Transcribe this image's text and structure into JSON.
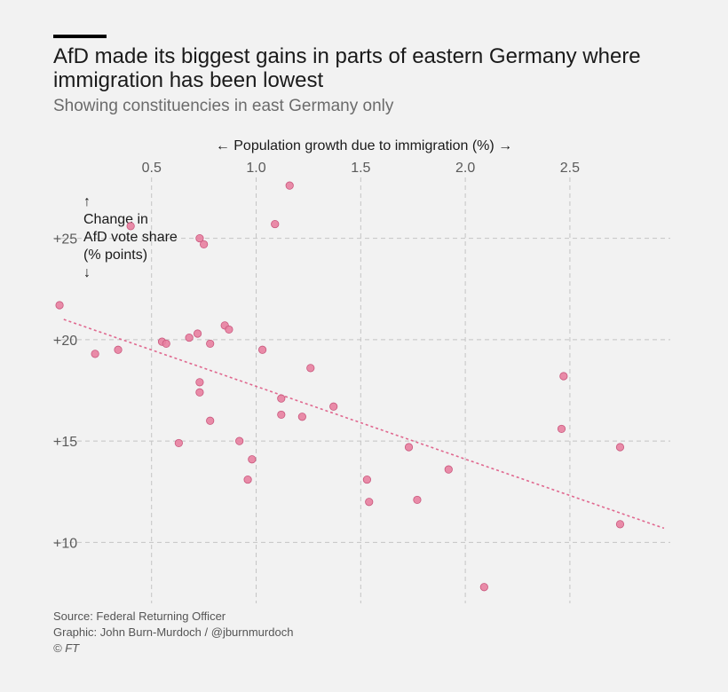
{
  "header": {
    "title": "AfD made its biggest gains in parts of eastern Germany where immigration has been lowest",
    "subtitle": "Showing constituencies in east Germany only"
  },
  "footer": {
    "source": "Source: Federal Returning Officer",
    "graphic": "Graphic: John Burn-Murdoch / @jburnmurdoch",
    "copyright": "© FT"
  },
  "chart_data": {
    "type": "scatter",
    "xlabel": "← Population growth due to immigration (%) →",
    "ylabel_lines": [
      "↑",
      "Change in",
      "AfD vote share",
      "(% points)",
      "↓"
    ],
    "x_ticks": [
      "0.5",
      "1.0",
      "1.5",
      "2.0",
      "2.5"
    ],
    "y_ticks": [
      "+10",
      "+15",
      "+20",
      "+25"
    ],
    "xlim": [
      0.03,
      2.98
    ],
    "ylim": [
      7.0,
      28.0
    ],
    "grid": true,
    "point_color": "#e87fa0",
    "trend_color": "#e0688f",
    "trendline": {
      "x": [
        0.08,
        2.95
      ],
      "y": [
        21.0,
        10.7
      ]
    },
    "points": [
      {
        "x": 0.06,
        "y": 21.7
      },
      {
        "x": 0.23,
        "y": 19.3
      },
      {
        "x": 0.34,
        "y": 19.5
      },
      {
        "x": 0.4,
        "y": 25.6
      },
      {
        "x": 0.55,
        "y": 19.9
      },
      {
        "x": 0.57,
        "y": 19.8
      },
      {
        "x": 0.63,
        "y": 14.9
      },
      {
        "x": 0.68,
        "y": 20.1
      },
      {
        "x": 0.72,
        "y": 20.3
      },
      {
        "x": 0.73,
        "y": 25.0
      },
      {
        "x": 0.75,
        "y": 24.7
      },
      {
        "x": 0.73,
        "y": 17.9
      },
      {
        "x": 0.73,
        "y": 17.4
      },
      {
        "x": 0.78,
        "y": 19.8
      },
      {
        "x": 0.78,
        "y": 16.0
      },
      {
        "x": 0.85,
        "y": 20.7
      },
      {
        "x": 0.87,
        "y": 20.5
      },
      {
        "x": 0.92,
        "y": 15.0
      },
      {
        "x": 0.96,
        "y": 13.1
      },
      {
        "x": 0.98,
        "y": 14.1
      },
      {
        "x": 1.03,
        "y": 19.5
      },
      {
        "x": 1.09,
        "y": 25.7
      },
      {
        "x": 1.12,
        "y": 17.1
      },
      {
        "x": 1.12,
        "y": 16.3
      },
      {
        "x": 1.16,
        "y": 27.6
      },
      {
        "x": 1.22,
        "y": 16.2
      },
      {
        "x": 1.26,
        "y": 18.6
      },
      {
        "x": 1.37,
        "y": 16.7
      },
      {
        "x": 1.53,
        "y": 13.1
      },
      {
        "x": 1.54,
        "y": 12.0
      },
      {
        "x": 1.73,
        "y": 14.7
      },
      {
        "x": 1.77,
        "y": 12.1
      },
      {
        "x": 1.92,
        "y": 13.6
      },
      {
        "x": 2.09,
        "y": 7.8
      },
      {
        "x": 2.46,
        "y": 15.6
      },
      {
        "x": 2.47,
        "y": 18.2
      },
      {
        "x": 2.74,
        "y": 14.7
      },
      {
        "x": 2.74,
        "y": 10.9
      }
    ]
  }
}
